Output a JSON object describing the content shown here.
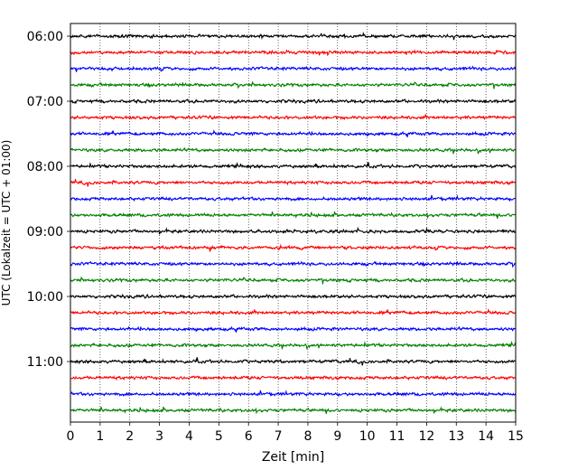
{
  "chart_data": {
    "type": "line",
    "xlabel": "Zeit  [min]",
    "ylabel": "UTC (Lokalzeit = UTC + 01:00)",
    "xlim": [
      0,
      15
    ],
    "xticks": [
      "0",
      "1",
      "2",
      "3",
      "4",
      "5",
      "6",
      "7",
      "8",
      "9",
      "10",
      "11",
      "12",
      "13",
      "14",
      "15"
    ],
    "yticks": [
      {
        "label": "06:00",
        "trace_index": 0
      },
      {
        "label": "07:00",
        "trace_index": 4
      },
      {
        "label": "08:00",
        "trace_index": 8
      },
      {
        "label": "09:00",
        "trace_index": 12
      },
      {
        "label": "10:00",
        "trace_index": 16
      },
      {
        "label": "11:00",
        "trace_index": 20
      }
    ],
    "grid": "vertical dotted",
    "trace_interval_min": 15,
    "trace_count": 24,
    "trace_colors": [
      "#000000",
      "#ff0000",
      "#0000ff",
      "#008000"
    ],
    "series_description": "24 seismogram traces, each a 15-minute window, starting 06:00 UTC and ending 11:45 UTC, colors cycling black, red, blue, green"
  }
}
